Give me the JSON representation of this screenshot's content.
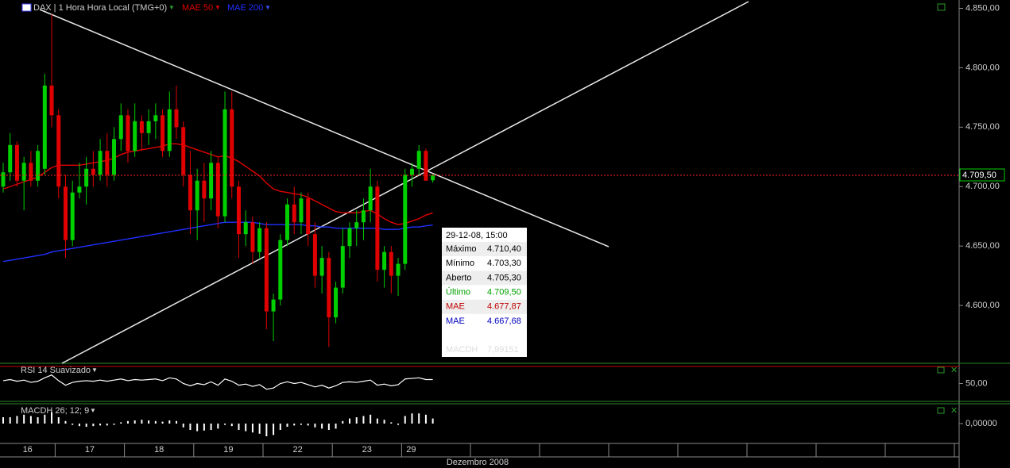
{
  "chart_data": {
    "type": "candlestick",
    "title": "DAX | 1 Hora Hora Local (TMG+0)",
    "x_label": "Dezembro 2008",
    "categories": [
      "16",
      null,
      null,
      null,
      null,
      null,
      null,
      null,
      "17",
      null,
      null,
      null,
      null,
      null,
      null,
      null,
      null,
      null,
      "18",
      null,
      null,
      null,
      null,
      null,
      null,
      null,
      null,
      null,
      "19",
      null,
      null,
      null,
      null,
      null,
      null,
      null,
      null,
      null,
      "22",
      null,
      null,
      null,
      null,
      null,
      null,
      null,
      null,
      null,
      "23",
      null,
      null,
      null,
      null,
      null,
      null,
      null,
      null,
      null,
      "29",
      null,
      null,
      null,
      null
    ],
    "open": [
      4700,
      4712,
      4735,
      4705,
      4720,
      4705,
      4715,
      4785,
      4760,
      4700,
      4655,
      4695,
      4700,
      4715,
      4710,
      4730,
      4710,
      4740,
      4760,
      4730,
      4755,
      4745,
      4755,
      4760,
      4730,
      4765,
      4750,
      4710,
      4680,
      4705,
      4690,
      4720,
      4675,
      4765,
      4700,
      4660,
      4670,
      4645,
      4665,
      4595,
      4605,
      4655,
      4685,
      4670,
      4690,
      4660,
      4625,
      4640,
      4590,
      4615,
      4650,
      4665,
      4670,
      4680,
      4700,
      4630,
      4645,
      4625,
      4635,
      4710,
      4715,
      4730,
      4705.3
    ],
    "high": [
      4720,
      4745,
      4738,
      4725,
      4730,
      4735,
      4795,
      4845,
      4765,
      4710,
      4705,
      4720,
      4725,
      4730,
      4740,
      4745,
      4750,
      4770,
      4765,
      4770,
      4760,
      4765,
      4770,
      4765,
      4780,
      4785,
      4755,
      4730,
      4715,
      4720,
      4730,
      4725,
      4780,
      4780,
      4705,
      4680,
      4675,
      4670,
      4670,
      4610,
      4660,
      4690,
      4700,
      4695,
      4695,
      4670,
      4650,
      4645,
      4620,
      4665,
      4670,
      4680,
      4690,
      4715,
      4705,
      4650,
      4650,
      4640,
      4715,
      4720,
      4735,
      4732,
      4710.4
    ],
    "low": [
      4695,
      4705,
      4700,
      4680,
      4700,
      4700,
      4710,
      4750,
      4690,
      4640,
      4650,
      4690,
      4685,
      4700,
      4705,
      4700,
      4705,
      4730,
      4720,
      4725,
      4730,
      4735,
      4740,
      4725,
      4725,
      4740,
      4700,
      4660,
      4655,
      4670,
      4680,
      4665,
      4670,
      4690,
      4640,
      4650,
      4635,
      4640,
      4580,
      4570,
      4600,
      4650,
      4660,
      4660,
      4650,
      4615,
      4610,
      4565,
      4585,
      4610,
      4640,
      4650,
      4655,
      4670,
      4620,
      4615,
      4610,
      4608,
      4630,
      4700,
      4710,
      4705,
      4703.3
    ],
    "close": [
      4712,
      4735,
      4705,
      4720,
      4705,
      4730,
      4785,
      4760,
      4700,
      4655,
      4695,
      4700,
      4715,
      4710,
      4730,
      4710,
      4740,
      4760,
      4730,
      4755,
      4745,
      4755,
      4760,
      4730,
      4765,
      4750,
      4710,
      4680,
      4705,
      4690,
      4720,
      4675,
      4765,
      4700,
      4660,
      4670,
      4645,
      4665,
      4595,
      4605,
      4655,
      4685,
      4670,
      4690,
      4660,
      4625,
      4640,
      4590,
      4615,
      4650,
      4665,
      4670,
      4680,
      4700,
      4630,
      4645,
      4625,
      4635,
      4710,
      4715,
      4730,
      4705,
      4709.5
    ],
    "up_color": "#00d000",
    "down_color": "#e00000",
    "series": [
      {
        "name": "MAE 50",
        "color": "#e00000",
        "values": [
          4698,
          4700,
          4702,
          4704,
          4706,
          4708,
          4712,
          4716,
          4718,
          4718,
          4718,
          4718,
          4719,
          4720,
          4721,
          4722,
          4724,
          4727,
          4729,
          4730,
          4731,
          4732,
          4733,
          4734,
          4736,
          4736,
          4735,
          4733,
          4731,
          4729,
          4727,
          4725,
          4726,
          4724,
          4721,
          4717,
          4713,
          4709,
          4703,
          4698,
          4696,
          4695,
          4694,
          4693,
          4691,
          4688,
          4685,
          4682,
          4679,
          4678,
          4678,
          4678,
          4679,
          4680,
          4677,
          4673,
          4670,
          4668,
          4669,
          4671,
          4673,
          4676,
          4677.87
        ]
      },
      {
        "name": "MAE 200",
        "color": "#2030ff",
        "values": [
          4637,
          4638,
          4639,
          4640,
          4641,
          4642,
          4643,
          4645,
          4646,
          4647,
          4648,
          4649,
          4650,
          4651,
          4652,
          4653,
          4654,
          4655,
          4656,
          4657,
          4658,
          4659,
          4660,
          4661,
          4662,
          4663,
          4664,
          4665,
          4666,
          4667,
          4668,
          4669,
          4670,
          4670,
          4670,
          4670,
          4670,
          4669,
          4668,
          4668,
          4668,
          4668,
          4668,
          4668,
          4667,
          4667,
          4666,
          4666,
          4665,
          4665,
          4665,
          4665,
          4665,
          4665,
          4665,
          4664,
          4664,
          4664,
          4665,
          4666,
          4666,
          4667,
          4667.68
        ]
      }
    ],
    "last_label": "4.709,50",
    "ylim": [
      4552,
      4857
    ],
    "yticks": [
      {
        "value": 4600,
        "label": "4.600,00"
      },
      {
        "value": 4650,
        "label": "4.650,00"
      },
      {
        "value": 4700,
        "label": "4.700,00"
      },
      {
        "value": 4750,
        "label": "4.750,00"
      },
      {
        "value": 4800,
        "label": "4.800,00"
      },
      {
        "value": 4850,
        "label": "4.850,00"
      }
    ],
    "rsi": {
      "title": "RSI 14 Suavizado",
      "color": "#ffffff",
      "values": [
        55,
        57,
        54,
        56,
        52,
        54,
        60,
        65,
        55,
        47,
        52,
        54,
        55,
        54,
        56,
        54,
        56,
        58,
        55,
        57,
        56,
        57,
        58,
        55,
        60,
        58,
        50,
        46,
        50,
        48,
        53,
        47,
        58,
        54,
        47,
        49,
        45,
        48,
        40,
        42,
        50,
        53,
        50,
        52,
        48,
        44,
        47,
        42,
        46,
        52,
        53,
        52,
        54,
        56,
        47,
        49,
        46,
        48,
        58,
        59,
        60,
        57,
        57
      ],
      "ylim": [
        20,
        80
      ],
      "yticks": [
        {
          "value": 50,
          "label": "50,00"
        }
      ]
    },
    "macd": {
      "title": "MACDH 26; 12; 9",
      "color": "#ffffff",
      "values": [
        10,
        10,
        12,
        14,
        12,
        10,
        14,
        18,
        10,
        4,
        -2,
        -4,
        -5,
        -4,
        -3,
        -3,
        -2,
        2,
        4,
        5,
        6,
        5,
        4,
        3,
        5,
        4,
        -6,
        -10,
        -12,
        -11,
        -10,
        -8,
        -2,
        -4,
        -10,
        -12,
        -14,
        -16,
        -20,
        -18,
        -10,
        -5,
        -3,
        -2,
        -3,
        -6,
        -8,
        -10,
        -8,
        4,
        8,
        10,
        12,
        14,
        8,
        6,
        2,
        -2,
        12,
        16,
        16,
        14,
        8
      ],
      "ylim": [
        -30,
        30
      ],
      "yticks": [
        {
          "value": 0,
          "label": "0,00000"
        }
      ]
    },
    "tooltip": {
      "time": "29-12-08, 15:00",
      "rows": [
        {
          "label": "Máximo",
          "value": "4.710,40"
        },
        {
          "label": "Mínimo",
          "value": "4.703,30"
        },
        {
          "label": "Aberto",
          "value": "4.705,30"
        },
        {
          "label": "Último",
          "value": "4.709,50"
        },
        {
          "label": "MAE",
          "value": "4.677,87"
        },
        {
          "label": "MAE",
          "value": "4.667,68"
        }
      ],
      "footer_label": "MACDH",
      "footer_value": "7,99151"
    }
  }
}
